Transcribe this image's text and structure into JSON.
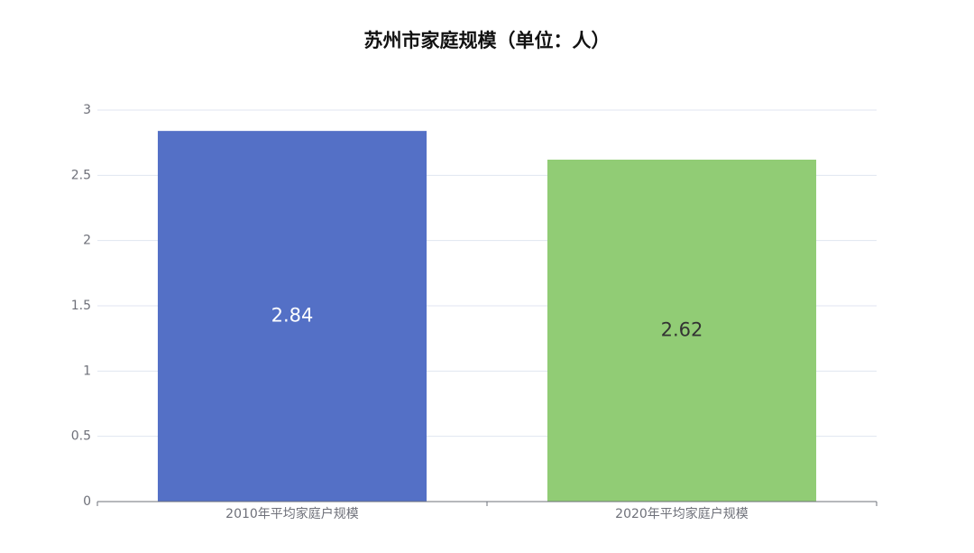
{
  "chart_data": {
    "type": "bar",
    "title": "苏州市家庭规模（单位：人）",
    "categories": [
      "2010年平均家庭户规模",
      "2020年平均家庭户规模"
    ],
    "values": [
      2.84,
      2.62
    ],
    "colors": [
      "#5470c6",
      "#91cc75"
    ],
    "label_colors": [
      "#ffffff",
      "#333333"
    ],
    "ylim": [
      0,
      3
    ],
    "yticks": [
      0,
      0.5,
      1,
      1.5,
      2,
      2.5,
      3
    ],
    "grid": true
  }
}
